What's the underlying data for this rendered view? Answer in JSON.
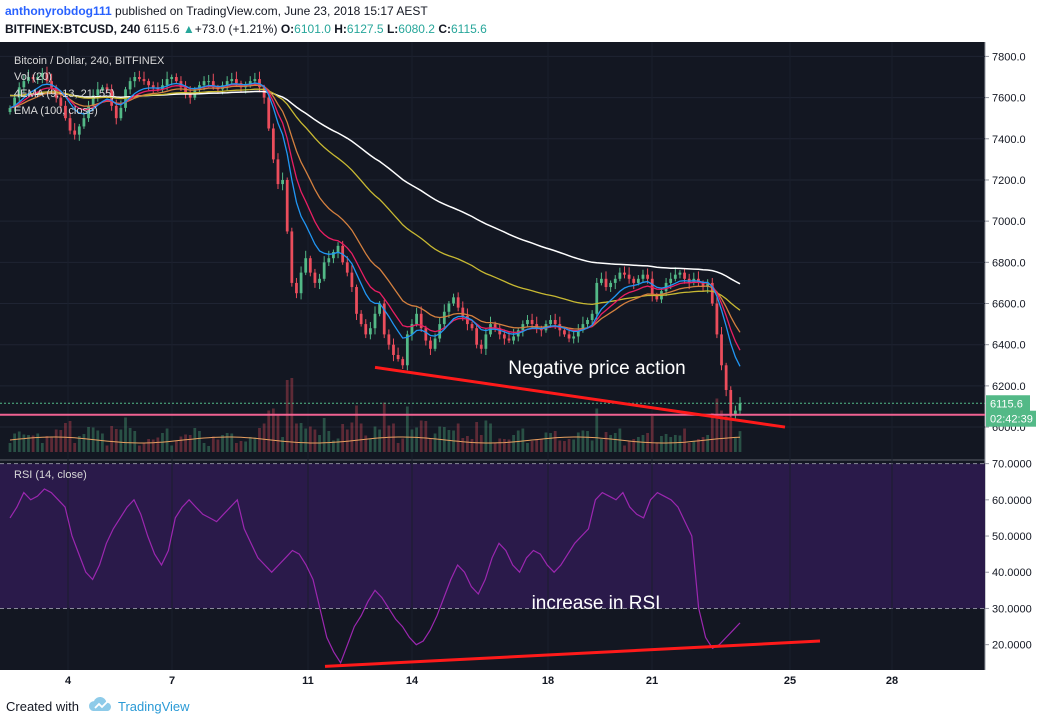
{
  "header": {
    "user": "anthonyrobdog111",
    "published_text": "published on TradingView.com, June 23, 2018 15:17 AEST",
    "symbol": "BITFINEX:BTCUSD, 240",
    "last": "6115.6",
    "change_arrow": "▲",
    "change": "+73.0 (+1.21%)",
    "open_label": "O:",
    "open": "6101.0",
    "high_label": "H:",
    "high": "6127.5",
    "low_label": "L:",
    "low": "6080.2",
    "close_label": "C:",
    "close": "6115.6"
  },
  "legend": {
    "title": "Bitcoin / Dollar, 240, BITFINEX",
    "vol": "Vol (20)",
    "ema4": "4EMA (9, 13, 21, 55)",
    "ema100": "EMA (100, close)",
    "rsi": "RSI (14, close)"
  },
  "annotations": {
    "price": "Negative price action",
    "rsi": "increase in RSI"
  },
  "footer": {
    "created": "Created with",
    "brand": "TradingView"
  },
  "colors": {
    "background": "#131722",
    "up": "#53b987",
    "down": "#eb4d5c",
    "ema9": "#2196f3",
    "ema13": "#e91e63",
    "ema21": "#d4803f",
    "ema55": "#c8b932",
    "ema100": "#ffffff",
    "rsi_line": "#9c27b0",
    "rsi_band": "#2a1a4a",
    "trendline": "#ff1a1a",
    "price_line": "#f06292"
  },
  "chart_data": [
    {
      "type": "candlestick",
      "title": "Bitcoin / Dollar, 240, BITFINEX",
      "y_ticks": [
        6000,
        6200,
        6400,
        6600,
        6800,
        7000,
        7200,
        7400,
        7600,
        7800
      ],
      "x_ticks": [
        "4",
        "7",
        "11",
        "14",
        "18",
        "21",
        "25",
        "28"
      ],
      "ylim": [
        5840,
        7870
      ],
      "last_price_label": "6115.6",
      "countdown_label": "02:42:39",
      "annotation": "Negative price action",
      "close_series": [
        7550,
        7600,
        7650,
        7680,
        7700,
        7690,
        7700,
        7720,
        7680,
        7650,
        7600,
        7560,
        7500,
        7440,
        7420,
        7460,
        7500,
        7560,
        7610,
        7640,
        7650,
        7640,
        7560,
        7500,
        7550,
        7640,
        7680,
        7700,
        7690,
        7680,
        7660,
        7650,
        7640,
        7660,
        7690,
        7700,
        7680,
        7650,
        7620,
        7600,
        7640,
        7660,
        7680,
        7680,
        7650,
        7640,
        7660,
        7680,
        7690,
        7670,
        7650,
        7660,
        7680,
        7690,
        7650,
        7600,
        7450,
        7300,
        7180,
        7200,
        6950,
        6700,
        6650,
        6750,
        6820,
        6750,
        6700,
        6720,
        6800,
        6820,
        6850,
        6880,
        6800,
        6750,
        6680,
        6550,
        6500,
        6450,
        6480,
        6550,
        6600,
        6450,
        6400,
        6350,
        6330,
        6300,
        6450,
        6500,
        6550,
        6480,
        6420,
        6380,
        6430,
        6500,
        6560,
        6600,
        6630,
        6580,
        6540,
        6500,
        6480,
        6400,
        6380,
        6450,
        6500,
        6480,
        6450,
        6430,
        6420,
        6440,
        6470,
        6500,
        6520,
        6500,
        6480,
        6470,
        6500,
        6520,
        6500,
        6470,
        6450,
        6430,
        6440,
        6470,
        6500,
        6520,
        6550,
        6700,
        6720,
        6680,
        6700,
        6720,
        6750,
        6740,
        6720,
        6700,
        6720,
        6740,
        6720,
        6640,
        6620,
        6660,
        6700,
        6720,
        6740,
        6750,
        6720,
        6700,
        6720,
        6700,
        6680,
        6700,
        6600,
        6450,
        6300,
        6180,
        6060,
        6080,
        6115.6
      ],
      "ema_series": [
        {
          "name": "EMA 100",
          "period": 100
        },
        {
          "name": "EMA 55",
          "period": 55
        },
        {
          "name": "EMA 21",
          "period": 21
        },
        {
          "name": "EMA 13",
          "period": 13
        },
        {
          "name": "EMA 9",
          "period": 9
        }
      ],
      "price_trendline": {
        "from": [
          6290,
          0.373
        ],
        "to": [
          6000,
          0.785
        ]
      },
      "price_level": 6060
    },
    {
      "type": "line",
      "title": "RSI (14, close)",
      "y_ticks": [
        20,
        30,
        40,
        50,
        60,
        70
      ],
      "ylim": [
        13,
        71
      ],
      "levels": [
        30,
        70
      ],
      "annotation": "increase in RSI",
      "values": [
        55,
        58,
        62,
        60,
        61,
        63,
        62,
        60,
        58,
        50,
        45,
        40,
        38,
        42,
        48,
        52,
        55,
        58,
        60,
        56,
        50,
        45,
        42,
        46,
        55,
        58,
        60,
        58,
        56,
        55,
        54,
        56,
        58,
        60,
        52,
        48,
        44,
        42,
        40,
        42,
        44,
        46,
        45,
        42,
        38,
        30,
        22,
        18,
        15,
        20,
        25,
        28,
        32,
        35,
        33,
        30,
        27,
        25,
        22,
        20,
        21,
        24,
        28,
        33,
        38,
        42,
        40,
        36,
        34,
        38,
        44,
        48,
        46,
        42,
        40,
        44,
        46,
        45,
        42,
        40,
        42,
        45,
        48,
        50,
        52,
        60,
        62,
        61,
        60,
        62,
        58,
        56,
        55,
        60,
        62,
        61,
        60,
        58,
        54,
        50,
        30,
        22,
        19,
        20,
        22,
        24,
        26
      ],
      "trendline": {
        "from": [
          14,
          0.325
        ],
        "to": [
          21,
          0.82
        ]
      }
    }
  ]
}
